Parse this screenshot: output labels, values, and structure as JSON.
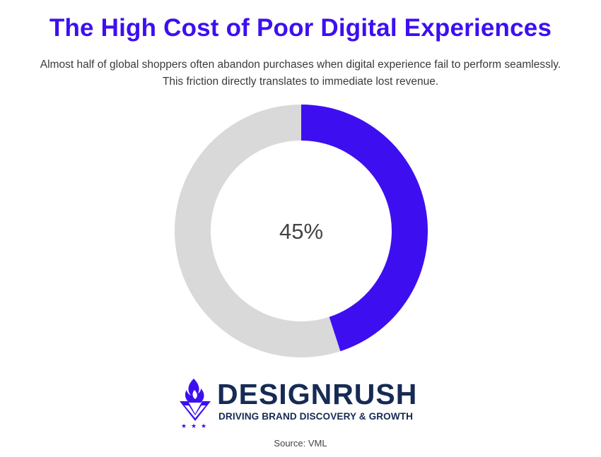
{
  "header": {
    "title": "The High Cost of Poor Digital Experiences",
    "subtitle_line1": "Almost half of global shoppers often abandon purchases when digital experience fail to perform seamlessly.",
    "subtitle_line2": "This friction directly translates to immediate lost revenue."
  },
  "chart_data": {
    "type": "pie",
    "variant": "donut",
    "center_label": "45%",
    "slices": [
      {
        "value": 45,
        "color": "#3d0ff0"
      },
      {
        "value": 55,
        "color": "#d9d9d9"
      }
    ]
  },
  "branding": {
    "name": "DESIGNRUSH",
    "tagline": "DRIVING BRAND DISCOVERY & GROWTH",
    "accent_color": "#3d0ff0",
    "text_color": "#162b54"
  },
  "footer": {
    "source": "Source: VML"
  }
}
